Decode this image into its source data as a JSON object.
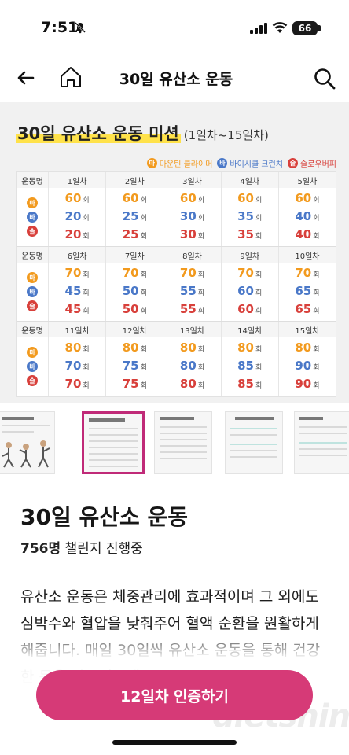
{
  "status": {
    "time": "7:51",
    "battery": "66"
  },
  "nav": {
    "title": "30일 유산소 운동"
  },
  "hero": {
    "title": "30일 유산소 운동 미션",
    "subtitle": "(1일차~15일차)",
    "legend": [
      {
        "badge": "마",
        "label": "마운틴 클라이머",
        "color": "#f29a1e"
      },
      {
        "badge": "바",
        "label": "바이시클 크런치",
        "color": "#4a78c8"
      },
      {
        "badge": "슬",
        "label": "슬로우버피",
        "color": "#d8403b"
      }
    ],
    "header_label": "운동명",
    "unit": "회",
    "sections": [
      {
        "days": [
          "1일차",
          "2일차",
          "3일차",
          "4일차",
          "5일차"
        ],
        "ma": [
          "60",
          "60",
          "60",
          "60",
          "60"
        ],
        "ba": [
          "20",
          "25",
          "30",
          "35",
          "40"
        ],
        "seul": [
          "20",
          "25",
          "30",
          "35",
          "40"
        ]
      },
      {
        "days": [
          "6일차",
          "7일차",
          "8일차",
          "9일차",
          "10일차"
        ],
        "ma": [
          "70",
          "70",
          "70",
          "70",
          "70"
        ],
        "ba": [
          "45",
          "50",
          "55",
          "60",
          "65"
        ],
        "seul": [
          "45",
          "50",
          "55",
          "60",
          "65"
        ]
      },
      {
        "days": [
          "11일차",
          "12일차",
          "13일차",
          "14일차",
          "15일차"
        ],
        "ma": [
          "80",
          "80",
          "80",
          "80",
          "80"
        ],
        "ba": [
          "70",
          "75",
          "80",
          "85",
          "90"
        ],
        "seul": [
          "70",
          "75",
          "80",
          "85",
          "90"
        ]
      }
    ]
  },
  "content": {
    "title": "30일 유산소 운동",
    "participant_count": "756명",
    "participant_label": "챌린지 진행중",
    "description": "유산소 운동은 체중관리에 효과적이며 그 외에도 심박수와 혈압을 낮춰주어 혈액 순환을 원활하게 해줍니다. 매일 30일씩 유산소 운동을 통해 건강한 몸을 만들어보세요."
  },
  "cta": {
    "label": "12일차 인증하기"
  },
  "watermark": "dietshin.com"
}
